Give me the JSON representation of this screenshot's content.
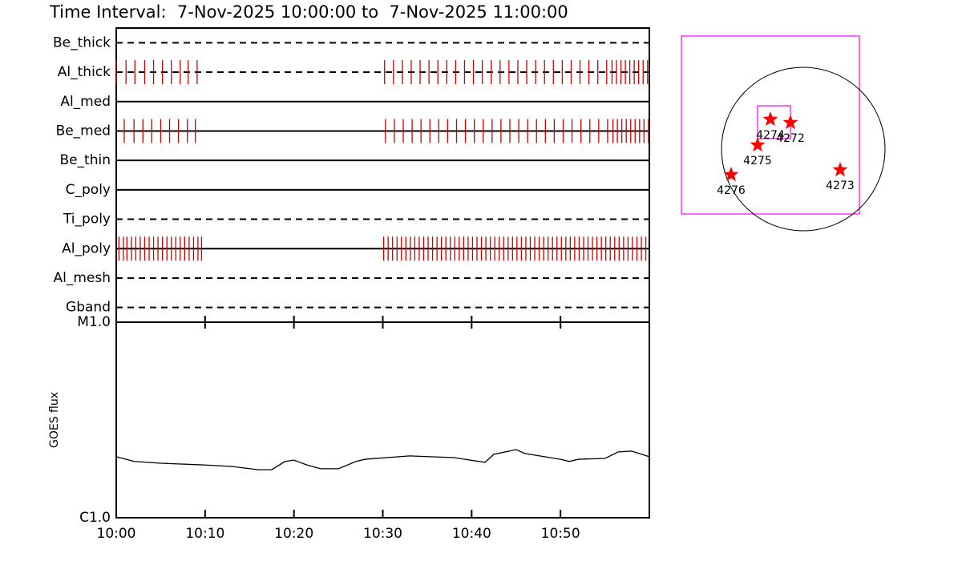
{
  "title": "Time Interval:  7-Nov-2025 10:00:00 to  7-Nov-2025 11:00:00",
  "chart_data": [
    {
      "type": "event",
      "color": "#cc0000",
      "xlim": [
        0,
        60
      ],
      "series": [
        {
          "name": "Be_thick",
          "line": "dashed",
          "values": []
        },
        {
          "name": "Al_thick",
          "line": "dashed",
          "values": [
            0,
            1.1,
            2.1,
            3.2,
            4.2,
            5.2,
            6.2,
            7.2,
            8.1,
            9.1,
            30.2,
            31.2,
            32.2,
            33.2,
            34.2,
            35.2,
            36.2,
            37.2,
            38.2,
            39.2,
            40.2,
            41.2,
            42.2,
            43.2,
            44.2,
            45.2,
            46.2,
            47.2,
            48.2,
            49.2,
            50.2,
            51.2,
            52.2,
            53.2,
            54.2,
            55.2,
            55.8,
            56.3,
            56.8,
            57.3,
            57.8,
            58.3,
            58.8,
            59.3,
            59.8
          ]
        },
        {
          "name": "Al_med",
          "line": "solid",
          "values": []
        },
        {
          "name": "Be_med",
          "line": "solid",
          "values": [
            0.9,
            2.0,
            3.0,
            4.0,
            5.0,
            6.0,
            7.0,
            8.0,
            8.9,
            30.3,
            31.3,
            32.3,
            33.3,
            34.3,
            35.3,
            36.3,
            37.3,
            38.3,
            39.3,
            40.3,
            41.3,
            42.3,
            43.3,
            44.3,
            45.3,
            46.3,
            47.3,
            48.3,
            49.3,
            50.3,
            51.3,
            52.3,
            53.3,
            54.3,
            55.3,
            55.9,
            56.4,
            56.9,
            57.4,
            57.9,
            58.4,
            58.9,
            59.4,
            59.9
          ]
        },
        {
          "name": "Be_thin",
          "line": "solid",
          "values": []
        },
        {
          "name": "C_poly",
          "line": "solid",
          "values": []
        },
        {
          "name": "Ti_poly",
          "line": "dashed",
          "values": []
        },
        {
          "name": "Al_poly",
          "line": "solid",
          "values": [
            0.3,
            0.8,
            1.2,
            1.7,
            2.2,
            2.7,
            3.2,
            3.7,
            4.2,
            4.7,
            5.2,
            5.7,
            6.2,
            6.7,
            7.2,
            7.7,
            8.2,
            8.7,
            9.2,
            9.6,
            30.1,
            30.6,
            31.1,
            31.6,
            32.1,
            32.6,
            33.1,
            33.6,
            34.1,
            34.6,
            35.1,
            35.6,
            36.1,
            36.6,
            37.1,
            37.6,
            38.1,
            38.6,
            39.1,
            39.6,
            40.1,
            40.6,
            41.1,
            41.6,
            42.1,
            42.6,
            43.1,
            43.6,
            44.1,
            44.6,
            45.1,
            45.6,
            46.1,
            46.6,
            47.1,
            47.6,
            48.1,
            48.6,
            49.1,
            49.6,
            50.1,
            50.6,
            51.1,
            51.6,
            52.1,
            52.6,
            53.1,
            53.6,
            54.1,
            54.6,
            55.1,
            55.6,
            56.1,
            56.6,
            57.1,
            57.6,
            58.1,
            58.6,
            59.1,
            59.6
          ]
        },
        {
          "name": "Al_mesh",
          "line": "dashed",
          "values": []
        },
        {
          "name": "Gband",
          "line": "dashed",
          "values": []
        }
      ]
    },
    {
      "type": "line",
      "y_label": "GOES flux",
      "color": "#000000",
      "log_scale": true,
      "xlim": [
        0,
        60
      ],
      "xticks": [
        {
          "value": 0,
          "label": "10:00"
        },
        {
          "value": 10,
          "label": "10:10"
        },
        {
          "value": 20,
          "label": "10:20"
        },
        {
          "value": 30,
          "label": "10:30"
        },
        {
          "value": 40,
          "label": "10:40"
        },
        {
          "value": 50,
          "label": "10:50"
        }
      ],
      "ylim": [
        1e-06,
        1e-05
      ],
      "yticks": [
        {
          "value": 1e-06,
          "label": "C1.0"
        },
        {
          "value": 1e-05,
          "label": "M1.0"
        }
      ],
      "x": [
        0,
        2,
        5,
        10,
        13,
        16,
        17.5,
        19,
        20,
        21.5,
        23,
        25,
        27,
        28,
        33,
        38,
        41.5,
        42.5,
        45,
        46,
        50,
        51,
        52,
        55,
        56.5,
        58,
        60
      ],
      "values": [
        2.05e-06,
        1.94e-06,
        1.9e-06,
        1.86e-06,
        1.83e-06,
        1.76e-06,
        1.76e-06,
        1.94e-06,
        1.97e-06,
        1.86e-06,
        1.78e-06,
        1.78e-06,
        1.94e-06,
        1.99e-06,
        2.07e-06,
        2.03e-06,
        1.92e-06,
        2.11e-06,
        2.23e-06,
        2.13e-06,
        1.99e-06,
        1.94e-06,
        1.99e-06,
        2.01e-06,
        2.17e-06,
        2.19e-06,
        2.05e-06
      ]
    }
  ],
  "map": {
    "regions": [
      "4274",
      "4272",
      "4275",
      "4276",
      "4273"
    ]
  }
}
